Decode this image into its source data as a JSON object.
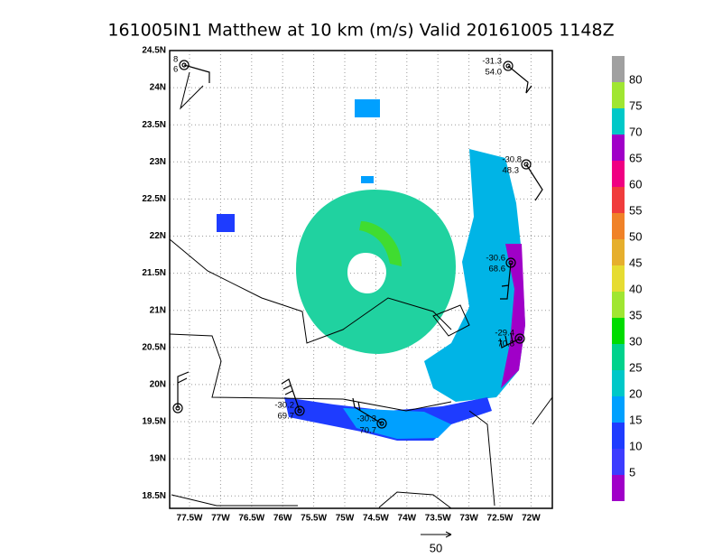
{
  "title": "161005IN1 Matthew at 10 km (m/s) Valid 20161005 1148Z",
  "latitude_labels": [
    "24.5N",
    "24N",
    "23.5N",
    "23N",
    "22.5N",
    "22N",
    "21.5N",
    "21N",
    "20.5N",
    "20N",
    "19.5N",
    "19N",
    "18.5N"
  ],
  "longitude_labels": [
    "77.5W",
    "77W",
    "76.5W",
    "76W",
    "75.5W",
    "75W",
    "74.5W",
    "74W",
    "73.5W",
    "73W",
    "72.5W",
    "72W"
  ],
  "colorbar": {
    "labels": [
      80,
      75,
      70,
      65,
      60,
      55,
      50,
      45,
      40,
      35,
      30,
      25,
      20,
      15,
      10,
      5
    ],
    "colors": [
      "#a0a0a0",
      "#a0e632",
      "#00c8c8",
      "#a000c8",
      "#f00082",
      "#f03c3c",
      "#f08228",
      "#e6af2d",
      "#e6dc32",
      "#a0e632",
      "#00dc00",
      "#00d28c",
      "#00c8c8",
      "#00a0ff",
      "#1e3cff",
      "#3c3cff",
      "#a000c8"
    ]
  },
  "stations": [
    {
      "top": "8",
      "bottom": "6"
    },
    {
      "top": "-31.3",
      "bottom": "54.0"
    },
    {
      "top": "-30.8",
      "bottom": "48.3"
    },
    {
      "top": "-30.6",
      "bottom": "68.6"
    },
    {
      "top": "-29.4",
      "bottom": "70.8"
    },
    {
      "top": "-30.2",
      "bottom": "69.7"
    },
    {
      "top": "-30.3",
      "bottom": "70.7"
    }
  ],
  "reference_vector": "50"
}
